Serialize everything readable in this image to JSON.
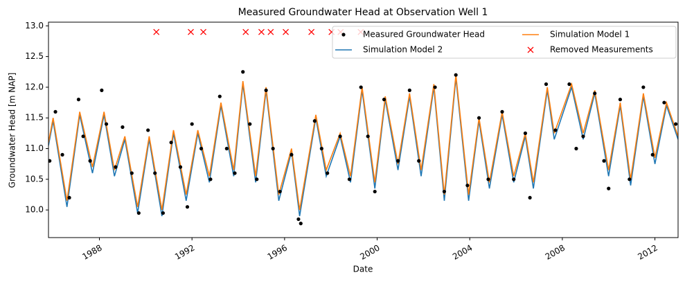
{
  "chart_data": {
    "type": "line",
    "title": "Measured Groundwater Head at Observation Well 1",
    "xlabel": "Date",
    "ylabel": "Groundwater Head [m NAP]",
    "xlim": [
      1985.8,
      2013.0
    ],
    "xticks": [
      1988,
      1992,
      1996,
      2000,
      2004,
      2008,
      2012
    ],
    "ylim": [
      9.55,
      13.06
    ],
    "yticks": [
      {
        "value": 10,
        "label": "10.0"
      },
      {
        "value": 10.5,
        "label": "10.5"
      },
      {
        "value": 11,
        "label": "11.0"
      },
      {
        "value": 11.5,
        "label": "11.5"
      },
      {
        "value": 12,
        "label": "12.0"
      },
      {
        "value": 12.5,
        "label": "12.5"
      },
      {
        "value": 13,
        "label": "13.0"
      }
    ],
    "legend": "upper right",
    "series": [
      {
        "name": "Simulation Model 2",
        "color": "#1f77b4",
        "marker": "line",
        "x": [
          1985.8,
          1986.0,
          1986.6,
          1987.15,
          1987.7,
          1988.2,
          1988.65,
          1989.1,
          1989.65,
          1990.15,
          1990.7,
          1991.2,
          1991.75,
          1992.25,
          1992.75,
          1993.25,
          1993.8,
          1994.2,
          1994.75,
          1995.2,
          1995.75,
          1996.3,
          1996.65,
          1997.35,
          1997.8,
          1998.4,
          1998.85,
          1999.35,
          1999.9,
          2000.35,
          2000.9,
          2001.4,
          2001.9,
          2002.45,
          2002.9,
          2003.4,
          2003.95,
          2004.4,
          2004.85,
          2005.4,
          2005.9,
          2006.4,
          2006.75,
          2007.35,
          2007.65,
          2008.4,
          2008.9,
          2009.4,
          2010.0,
          2010.5,
          2010.95,
          2011.5,
          2012.0,
          2012.5,
          2013.0
        ],
        "values": [
          11.05,
          11.45,
          10.05,
          11.55,
          10.6,
          11.55,
          10.55,
          11.15,
          9.95,
          11.15,
          9.9,
          11.25,
          10.15,
          11.25,
          10.45,
          11.7,
          10.55,
          12.05,
          10.45,
          11.95,
          10.15,
          10.95,
          9.9,
          11.5,
          10.55,
          11.2,
          10.45,
          11.95,
          10.35,
          11.8,
          10.65,
          11.85,
          10.55,
          12.0,
          10.15,
          12.15,
          10.15,
          11.45,
          10.35,
          11.55,
          10.45,
          11.2,
          10.35,
          11.95,
          11.15,
          12.0,
          11.15,
          11.9,
          10.55,
          11.7,
          10.4,
          11.85,
          10.75,
          11.7,
          11.15
        ]
      },
      {
        "name": "Simulation Model 1",
        "color": "#ff7f0e",
        "marker": "line",
        "x": [
          1985.8,
          1986.0,
          1986.6,
          1987.15,
          1987.7,
          1988.2,
          1988.65,
          1989.1,
          1989.65,
          1990.15,
          1990.7,
          1991.2,
          1991.75,
          1992.25,
          1992.75,
          1993.25,
          1993.8,
          1994.2,
          1994.75,
          1995.2,
          1995.75,
          1996.3,
          1996.65,
          1997.35,
          1997.8,
          1998.4,
          1998.85,
          1999.35,
          1999.9,
          2000.35,
          2000.9,
          2001.4,
          2001.9,
          2002.45,
          2002.9,
          2003.4,
          2003.95,
          2004.4,
          2004.85,
          2005.4,
          2005.9,
          2006.4,
          2006.75,
          2007.35,
          2007.65,
          2008.4,
          2008.9,
          2009.4,
          2010.0,
          2010.5,
          2010.95,
          2011.5,
          2012.0,
          2012.5,
          2013.0
        ],
        "values": [
          11.1,
          11.5,
          10.15,
          11.6,
          10.7,
          11.6,
          10.65,
          11.2,
          10.05,
          11.2,
          10.0,
          11.3,
          10.25,
          11.3,
          10.55,
          11.75,
          10.65,
          12.1,
          10.55,
          12.0,
          10.25,
          11.0,
          10.0,
          11.55,
          10.65,
          11.25,
          10.55,
          12.0,
          10.45,
          11.85,
          10.75,
          11.9,
          10.65,
          12.05,
          10.25,
          12.2,
          10.25,
          11.5,
          10.45,
          11.6,
          10.55,
          11.25,
          10.45,
          12.0,
          11.25,
          12.05,
          11.25,
          11.95,
          10.65,
          11.75,
          10.5,
          11.9,
          10.85,
          11.75,
          11.2
        ]
      },
      {
        "name": "Measured Groundwater Head",
        "color": "#000000",
        "marker": "dot",
        "x": [
          1985.85,
          1986.1,
          1986.4,
          1986.7,
          1987.1,
          1987.3,
          1987.6,
          1988.1,
          1988.3,
          1988.7,
          1989.0,
          1989.4,
          1989.7,
          1990.1,
          1990.4,
          1990.75,
          1991.1,
          1991.5,
          1991.8,
          1992.0,
          1992.4,
          1992.8,
          1993.2,
          1993.5,
          1993.85,
          1994.2,
          1994.5,
          1994.8,
          1995.2,
          1995.5,
          1995.8,
          1996.3,
          1996.6,
          1996.7,
          1997.3,
          1997.6,
          1997.85,
          1998.4,
          1998.8,
          1999.3,
          1999.6,
          1999.9,
          2000.3,
          2000.9,
          2001.4,
          2001.8,
          2002.5,
          2002.9,
          2003.4,
          2003.9,
          2004.4,
          2004.8,
          2005.4,
          2005.9,
          2006.4,
          2006.6,
          2007.3,
          2007.7,
          2008.3,
          2008.6,
          2008.9,
          2009.4,
          2009.8,
          2010.0,
          2010.5,
          2010.9,
          2011.5,
          2011.9,
          2012.4,
          2012.9
        ],
        "values": [
          10.8,
          11.6,
          10.9,
          10.2,
          11.8,
          11.2,
          10.8,
          11.95,
          11.4,
          10.7,
          11.35,
          10.6,
          9.95,
          11.3,
          10.6,
          9.95,
          11.1,
          10.7,
          10.05,
          11.4,
          11.0,
          10.5,
          11.85,
          11.0,
          10.6,
          12.25,
          11.4,
          10.5,
          11.95,
          11.0,
          10.3,
          10.9,
          9.85,
          9.78,
          11.45,
          11.0,
          10.6,
          11.2,
          10.5,
          12.0,
          11.2,
          10.3,
          11.8,
          10.8,
          11.95,
          10.8,
          12.0,
          10.3,
          12.2,
          10.4,
          11.5,
          10.5,
          11.6,
          10.5,
          11.25,
          10.2,
          12.05,
          11.3,
          12.05,
          11.0,
          11.2,
          11.9,
          10.8,
          10.35,
          11.8,
          10.5,
          12.0,
          10.9,
          11.75,
          11.4
        ]
      },
      {
        "name": "Removed Measurements",
        "color": "#ff0000",
        "marker": "x",
        "x": [
          1990.46,
          1991.95,
          1992.49,
          1994.32,
          1995.0,
          1995.4,
          1996.05,
          1997.16,
          1998.03,
          1998.42,
          1999.29
        ],
        "values": [
          12.9,
          12.9,
          12.9,
          12.9,
          12.9,
          12.9,
          12.9,
          12.9,
          12.9,
          12.9,
          12.9
        ]
      }
    ]
  }
}
